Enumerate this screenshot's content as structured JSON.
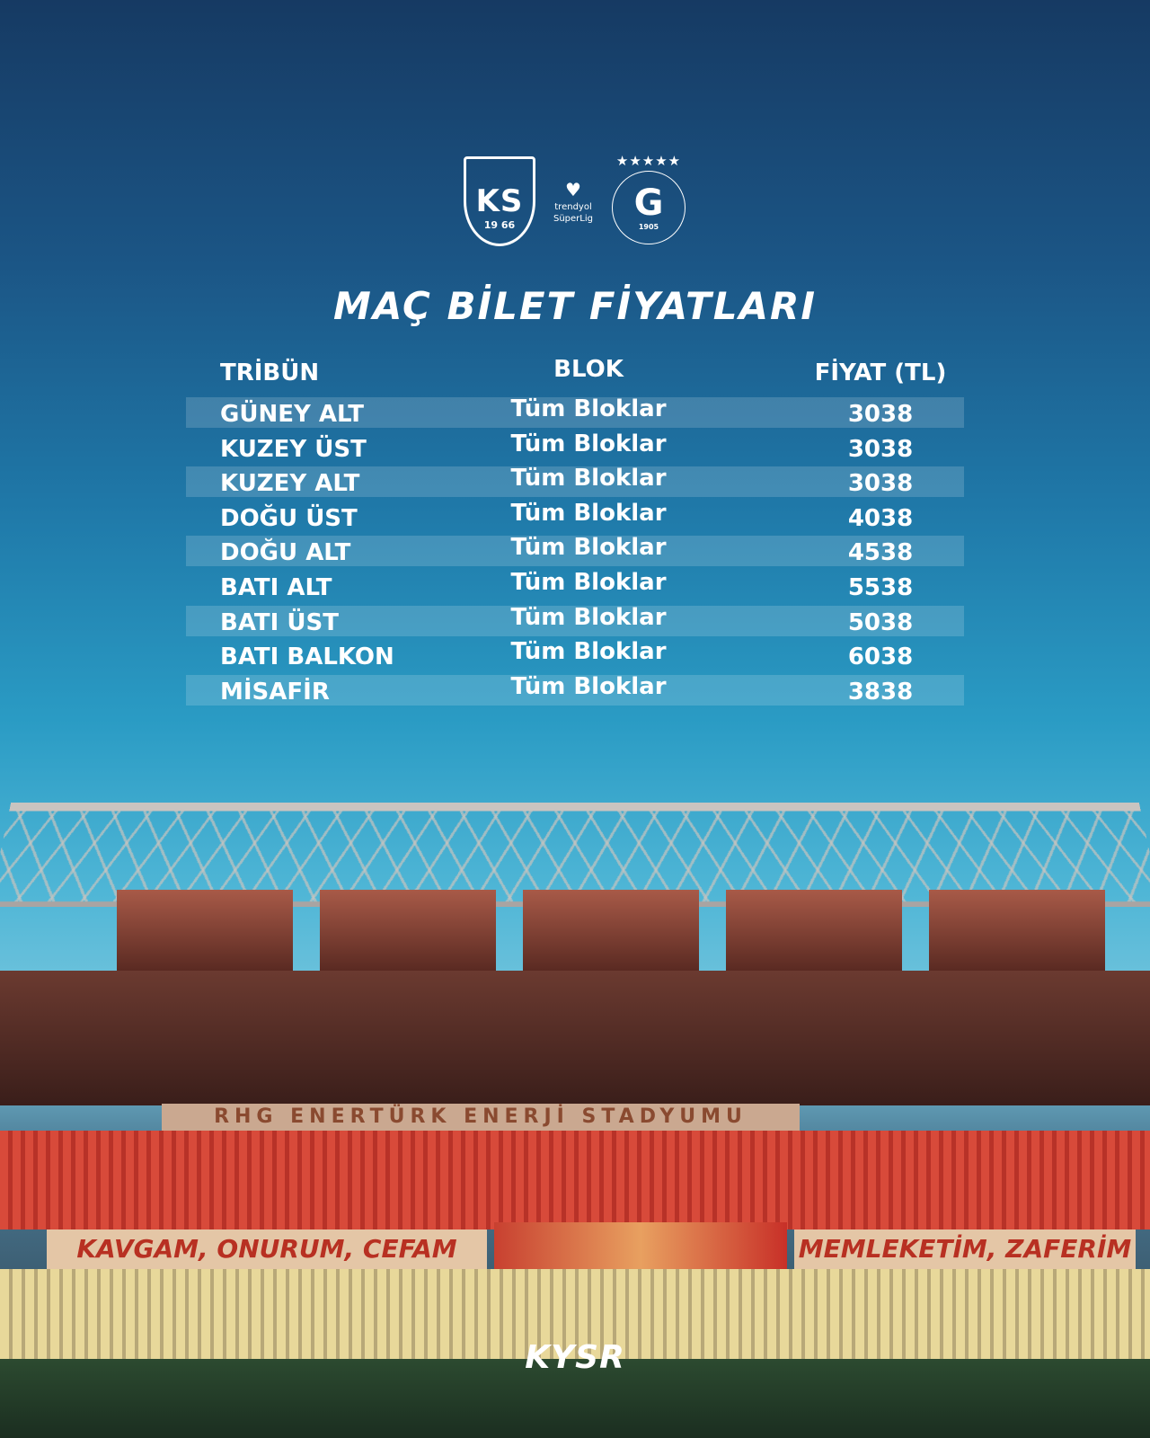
{
  "logos": {
    "home": {
      "initials": "KS",
      "year": "19 66"
    },
    "league": {
      "icon": "trendyol-icon",
      "line1": "trendyol",
      "line2": "SüperLig"
    },
    "away": {
      "stars": "★★★★★",
      "letter": "G",
      "year": "1905"
    }
  },
  "title": "MAÇ BİLET FİYATLARI",
  "table": {
    "headers": [
      "TRİBÜN",
      "BLOK",
      "FİYAT (TL)"
    ],
    "rows": [
      {
        "tribun": "GÜNEY ALT",
        "blok": "Tüm Bloklar",
        "fiyat": "3038"
      },
      {
        "tribun": "KUZEY ÜST",
        "blok": "Tüm Bloklar",
        "fiyat": "3038"
      },
      {
        "tribun": "KUZEY ALT",
        "blok": "Tüm Bloklar",
        "fiyat": "3038"
      },
      {
        "tribun": "DOĞU ÜST",
        "blok": "Tüm Bloklar",
        "fiyat": "4038"
      },
      {
        "tribun": "DOĞU ALT",
        "blok": "Tüm Bloklar",
        "fiyat": "4538"
      },
      {
        "tribun": "BATI ALT",
        "blok": "Tüm Bloklar",
        "fiyat": "5538"
      },
      {
        "tribun": "BATI ÜST",
        "blok": "Tüm Bloklar",
        "fiyat": "5038"
      },
      {
        "tribun": "BATI BALKON",
        "blok": "Tüm Bloklar",
        "fiyat": "6038"
      },
      {
        "tribun": "MİSAFİR",
        "blok": "Tüm Bloklar",
        "fiyat": "3838"
      }
    ]
  },
  "stadium": {
    "sponsor_sign": "RHG ENERTÜRK ENERJİ STADYUMU",
    "banner_left": "KAVGAM, ONURUM, CEFAM",
    "banner_right": "MEMLEKETİM, ZAFERİM"
  },
  "footer_logo": "KYSR"
}
